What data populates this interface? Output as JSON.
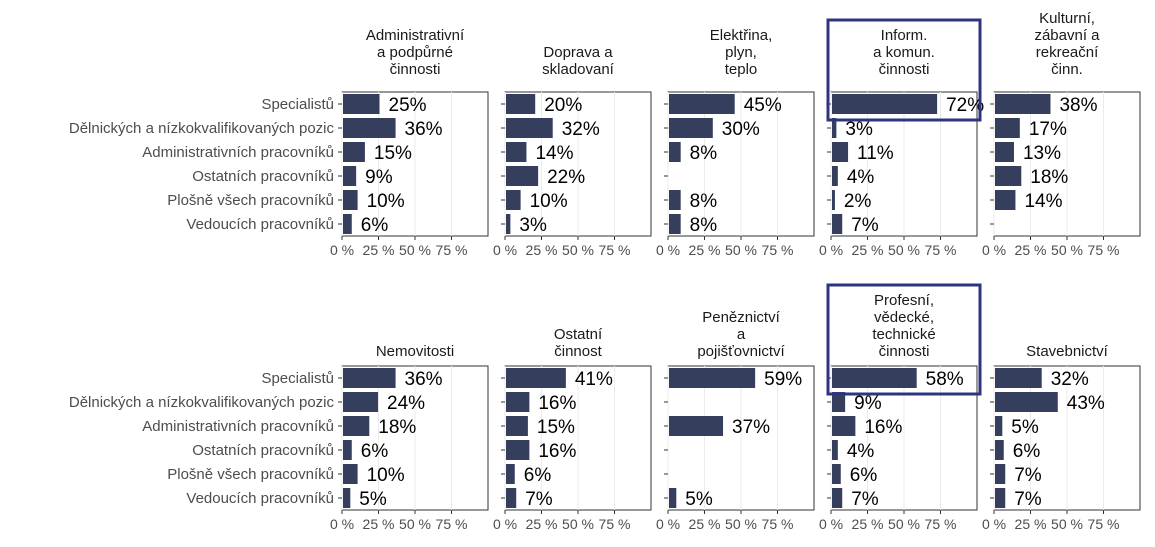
{
  "chart_data": {
    "type": "bar",
    "orientation": "horizontal",
    "facets": "2 rows x 5 columns",
    "categories": [
      "Specialistů",
      "Dělnických a nízkokvalifikovaných pozic",
      "Administrativních pracovníků",
      "Ostatních pracovníků",
      "Plošně všech pracovníků",
      "Vedoucích pracovníků"
    ],
    "x_ticks": [
      "0 %",
      "25 %",
      "50 %",
      "75 %"
    ],
    "xlim": [
      0,
      100
    ],
    "grid": true,
    "bar_color": "#353e5c",
    "highlight_color": "#2e3580",
    "panels": [
      {
        "title": [
          "Administrativní",
          "a podpůrné",
          "činnosti"
        ],
        "values": [
          25,
          36,
          15,
          9,
          10,
          6
        ],
        "labels": [
          "25%",
          "36%",
          "15%",
          "9%",
          "10%",
          "6%"
        ],
        "highlight": false
      },
      {
        "title": [
          "Doprava a",
          "skladovaní"
        ],
        "values": [
          20,
          32,
          14,
          22,
          10,
          3
        ],
        "labels": [
          "20%",
          "32%",
          "14%",
          "22%",
          "10%",
          "3%"
        ],
        "highlight": false
      },
      {
        "title": [
          "Elektřina,",
          "plyn,",
          "teplo"
        ],
        "values": [
          45,
          30,
          8,
          null,
          8,
          8
        ],
        "labels": [
          "45%",
          "30%",
          "8%",
          "",
          "8%",
          "8%"
        ],
        "highlight": false
      },
      {
        "title": [
          "Inform.",
          "a komun.",
          "činnosti"
        ],
        "values": [
          72,
          3,
          11,
          4,
          2,
          7
        ],
        "labels": [
          "72%",
          "3%",
          "11%",
          "4%",
          "2%",
          "7%"
        ],
        "highlight": true
      },
      {
        "title": [
          "Kulturní,",
          "zábavní a",
          "rekreační",
          "činn."
        ],
        "values": [
          38,
          17,
          13,
          18,
          14,
          null
        ],
        "labels": [
          "38%",
          "17%",
          "13%",
          "18%",
          "14%",
          ""
        ],
        "highlight": false
      },
      {
        "title": [
          "Nemovitosti"
        ],
        "values": [
          36,
          24,
          18,
          6,
          10,
          5
        ],
        "labels": [
          "36%",
          "24%",
          "18%",
          "6%",
          "10%",
          "5%"
        ],
        "highlight": false
      },
      {
        "title": [
          "Ostatní",
          "činnost"
        ],
        "values": [
          41,
          16,
          15,
          16,
          6,
          7
        ],
        "labels": [
          "41%",
          "16%",
          "15%",
          "16%",
          "6%",
          "7%"
        ],
        "highlight": false
      },
      {
        "title": [
          "Peněznictví",
          "a",
          "pojišťovnictví"
        ],
        "values": [
          59,
          null,
          37,
          null,
          null,
          5
        ],
        "labels": [
          "59%",
          "",
          "37%",
          "",
          "",
          "5%"
        ],
        "highlight": false
      },
      {
        "title": [
          "Profesní,",
          "vědecké,",
          "technické",
          "činnosti"
        ],
        "values": [
          58,
          9,
          16,
          4,
          6,
          7
        ],
        "labels": [
          "58%",
          "9%",
          "16%",
          "4%",
          "6%",
          "7%"
        ],
        "highlight": true
      },
      {
        "title": [
          "Stavebnictví"
        ],
        "values": [
          32,
          43,
          5,
          6,
          7,
          7
        ],
        "labels": [
          "32%",
          "43%",
          "5%",
          "6%",
          "7%",
          "7%"
        ],
        "highlight": false
      }
    ]
  }
}
